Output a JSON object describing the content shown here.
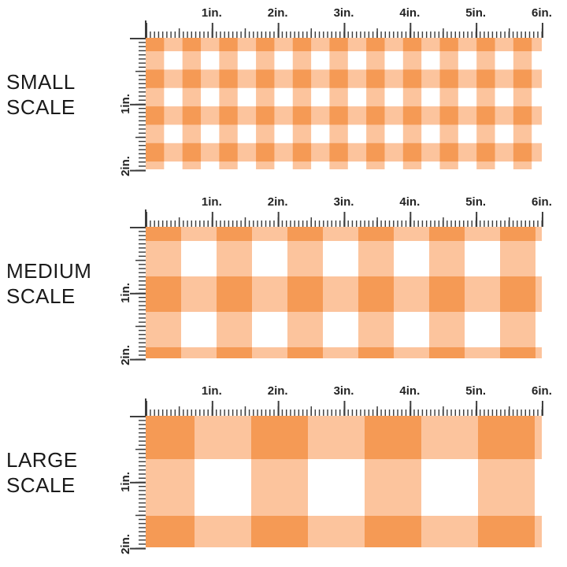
{
  "colors": {
    "gingham_dark": "#F59A55",
    "gingham_light": "#FCC49D",
    "tick": "#3d3d3d",
    "text": "#1a1a1a",
    "bg": "#ffffff"
  },
  "horizontal_ruler_labels": [
    "1in.",
    "2in.",
    "3in.",
    "4in.",
    "5in.",
    "6in."
  ],
  "vertical_ruler_labels": [
    "1in.",
    "2in."
  ],
  "sections": [
    {
      "id": "small",
      "label_line1": "SMALL",
      "label_line2": "SCALE",
      "check_size_inches": 0.28
    },
    {
      "id": "medium",
      "label_line1": "MEDIUM",
      "label_line2": "SCALE",
      "check_size_inches": 0.54
    },
    {
      "id": "large",
      "label_line1": "LARGE",
      "label_line2": "SCALE",
      "check_size_inches": 0.86
    }
  ]
}
